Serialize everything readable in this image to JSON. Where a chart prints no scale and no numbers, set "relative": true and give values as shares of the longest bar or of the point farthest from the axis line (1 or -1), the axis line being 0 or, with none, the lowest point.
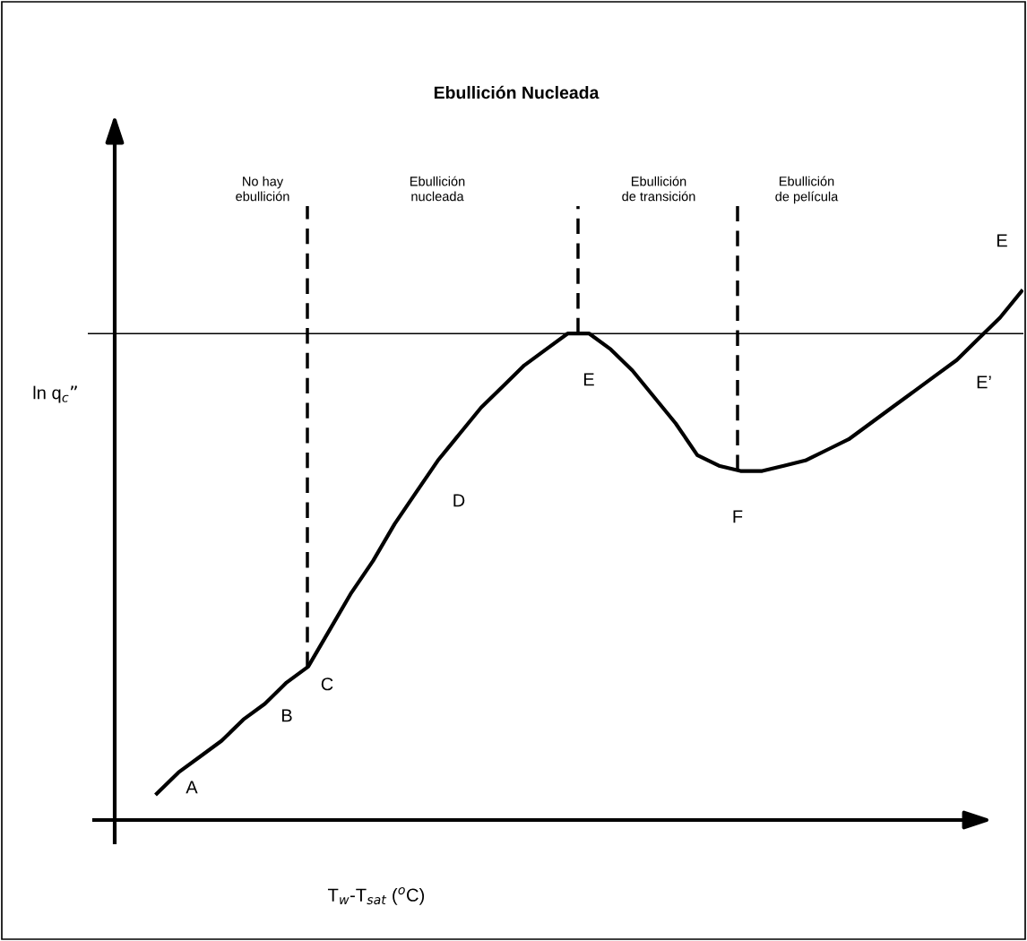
{
  "chart_data": {
    "type": "line",
    "title": "Ebullición Nucleada",
    "xlabel": "T$_{w}$-T$_{sat}$ ($^{o}$C)",
    "ylabel": "ln q$_{c}$”",
    "relative": true,
    "categories": [
      null,
      null,
      null,
      null,
      null,
      null,
      null,
      null,
      null,
      null,
      null,
      null,
      null,
      null,
      null,
      null,
      null,
      null,
      null,
      null,
      null,
      null,
      null,
      null,
      null,
      null,
      null,
      null,
      null,
      null,
      null,
      null,
      null,
      null,
      null,
      null,
      null,
      null,
      null,
      null,
      null
    ],
    "series": [
      {
        "color": "#000000",
        "values": [
          0.05,
          0.09,
          0.12,
          0.15,
          0.19,
          0.22,
          0.26,
          0.29,
          0.36,
          0.43,
          0.49,
          0.56,
          0.62,
          0.68,
          0.73,
          0.78,
          0.82,
          0.86,
          0.89,
          0.92,
          0.92,
          0.89,
          0.85,
          0.8,
          0.75,
          0.69,
          0.67,
          0.66,
          0.66,
          0.67,
          0.68,
          0.7,
          0.72,
          0.75,
          0.78,
          0.81,
          0.84,
          0.87,
          0.91,
          0.95,
          1.0
        ]
      }
    ],
    "ref_lines": [
      {
        "axis": "y",
        "value": 0.92,
        "color": "#000000",
        "line_style": "solid"
      }
    ],
    "annotations": [
      "No hay\nebullición",
      "Ebullición\nnucleada",
      "Ebullición\nde transición",
      "Ebullición\nde película",
      "A",
      "B",
      "C",
      "D",
      "E",
      "F",
      "E’",
      "E"
    ],
    "legend": false,
    "marker": "none",
    "line_style": "solid"
  }
}
